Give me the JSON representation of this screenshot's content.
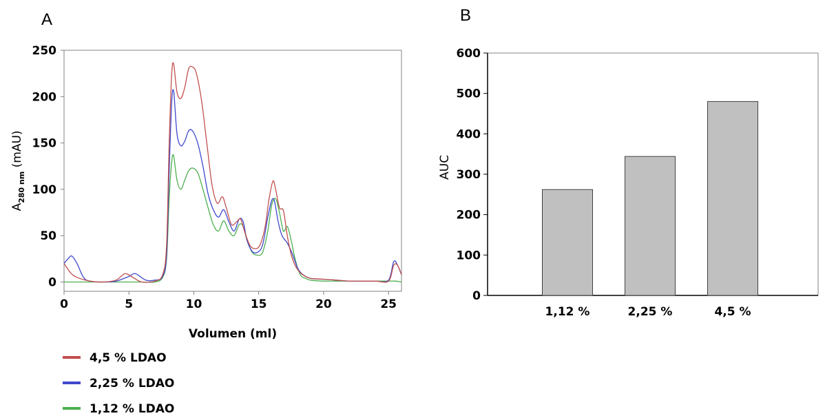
{
  "chart_data": [
    {
      "panel_label": "A",
      "type": "line",
      "xlabel": "Volumen (ml)",
      "ylabel": {
        "main": "A",
        "subscript": "280 nm",
        "suffix": " (mAU)"
      },
      "xlim": [
        0,
        26
      ],
      "ylim": [
        -10,
        250
      ],
      "xticks": [
        0,
        5,
        10,
        15,
        20,
        25
      ],
      "yticks": [
        0,
        50,
        100,
        150,
        200,
        250
      ],
      "grid": false,
      "legend_position": "bottom-left, below chart",
      "series": [
        {
          "name": "4,5 % LDAO",
          "color": "#C0504D",
          "x": [
            0,
            0.5,
            1,
            2,
            3,
            4,
            4.7,
            5.3,
            6,
            7,
            7.6,
            7.9,
            8.1,
            8.3,
            8.45,
            8.7,
            9.0,
            9.3,
            9.6,
            9.9,
            10.2,
            10.6,
            11.0,
            11.4,
            11.8,
            12.2,
            12.5,
            12.9,
            13.3,
            13.6,
            13.9,
            14.3,
            14.7,
            15.1,
            15.5,
            15.8,
            16.1,
            16.3,
            16.6,
            16.9,
            17.2,
            17.5,
            17.8,
            18.2,
            18.6,
            19,
            20,
            21,
            22,
            23,
            24,
            25,
            25.4,
            25.7,
            26
          ],
          "y": [
            20,
            10,
            5,
            1,
            0,
            2,
            9,
            5,
            0,
            1,
            8,
            40,
            150,
            225,
            235,
            205,
            198,
            210,
            230,
            232,
            225,
            195,
            150,
            105,
            85,
            92,
            80,
            62,
            65,
            68,
            55,
            40,
            36,
            40,
            60,
            90,
            109,
            100,
            80,
            77,
            50,
            30,
            18,
            10,
            6,
            4,
            3,
            2,
            1,
            1,
            1,
            1,
            18,
            18,
            8
          ]
        },
        {
          "name": "2,25 % LDAO",
          "color": "#3F48CC",
          "x": [
            0,
            0.3,
            0.6,
            1,
            1.5,
            2,
            3,
            4,
            5,
            5.5,
            6.3,
            7,
            7.6,
            7.9,
            8.1,
            8.3,
            8.45,
            8.7,
            9.0,
            9.3,
            9.6,
            9.9,
            10.3,
            10.7,
            11.1,
            11.5,
            11.9,
            12.3,
            12.7,
            13.1,
            13.5,
            13.8,
            14.1,
            14.5,
            14.9,
            15.3,
            15.7,
            16.0,
            16.2,
            16.5,
            16.8,
            17.2,
            17.6,
            18,
            18.4,
            19,
            20,
            21,
            22,
            23,
            24,
            25,
            25.4,
            25.7,
            26
          ],
          "y": [
            20,
            25,
            28,
            20,
            5,
            1,
            0,
            1,
            6,
            9,
            2,
            2,
            6,
            30,
            120,
            195,
            206,
            160,
            147,
            152,
            163,
            163,
            150,
            125,
            95,
            78,
            70,
            78,
            65,
            55,
            68,
            65,
            45,
            33,
            32,
            40,
            70,
            88,
            88,
            65,
            50,
            42,
            30,
            15,
            8,
            4,
            3,
            2,
            1,
            1,
            1,
            2,
            22,
            18,
            8
          ]
        },
        {
          "name": "1,12 % LDAO",
          "color": "#4CAF50",
          "x": [
            0,
            1,
            2,
            3,
            4,
            5,
            6,
            7,
            7.6,
            7.9,
            8.1,
            8.3,
            8.45,
            8.7,
            9.0,
            9.3,
            9.6,
            9.9,
            10.3,
            10.7,
            11.1,
            11.5,
            11.9,
            12.3,
            12.7,
            13.1,
            13.5,
            13.8,
            14.1,
            14.5,
            14.9,
            15.3,
            15.7,
            16.0,
            16.3,
            16.6,
            16.9,
            17.2,
            17.5,
            17.8,
            18.2,
            18.6,
            19,
            20,
            21,
            22,
            23,
            24,
            25,
            25.5,
            26
          ],
          "y": [
            0,
            0,
            0,
            0,
            0,
            0,
            0,
            0,
            5,
            25,
            90,
            130,
            136,
            110,
            100,
            110,
            120,
            123,
            118,
            100,
            80,
            62,
            55,
            66,
            55,
            50,
            62,
            60,
            45,
            32,
            29,
            32,
            55,
            83,
            90,
            75,
            55,
            60,
            45,
            25,
            8,
            4,
            2,
            1,
            1,
            1,
            1,
            1,
            1,
            1,
            0
          ]
        }
      ]
    },
    {
      "panel_label": "B",
      "type": "bar",
      "categories": [
        "1,12 %",
        "2,25 %",
        "4,5 %"
      ],
      "values": [
        262,
        344,
        480
      ],
      "ylabel": "AUC",
      "xlabel": "",
      "ylim": [
        0,
        600
      ],
      "yticks": [
        0,
        100,
        200,
        300,
        400,
        500,
        600
      ],
      "grid": false,
      "bar_color": "#C0C0C0",
      "bar_edge_color": "#404040"
    }
  ]
}
